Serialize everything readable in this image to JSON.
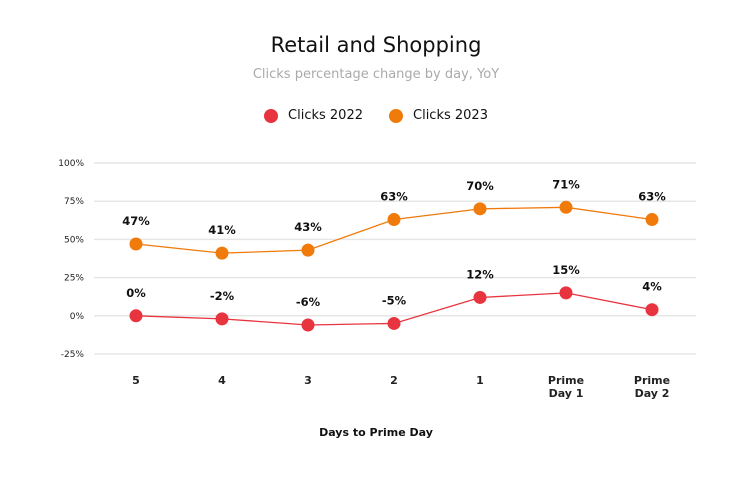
{
  "chart_data": {
    "type": "line",
    "title": "Retail and Shopping",
    "subtitle": "Clicks percentage change by day, YoY",
    "xlabel": "Days to Prime Day",
    "ylabel": "",
    "categories": [
      [
        "5"
      ],
      [
        "4"
      ],
      [
        "3"
      ],
      [
        "2"
      ],
      [
        "1"
      ],
      [
        "Prime",
        "Day 1"
      ],
      [
        "Prime",
        "Day 2"
      ]
    ],
    "yticks": [
      100,
      75,
      50,
      25,
      0,
      -25
    ],
    "ytick_labels": [
      "100%",
      "75%",
      "50%",
      "25%",
      "0%",
      "-25%"
    ],
    "ylim": [
      -25,
      100
    ],
    "grid": true,
    "legend_position": "top-center",
    "series": [
      {
        "name": "Clicks 2022",
        "color": "#E8343F",
        "values": [
          0,
          -2,
          -6,
          -5,
          12,
          15,
          4
        ],
        "labels": [
          "0%",
          "-2%",
          "-6%",
          "-5%",
          "12%",
          "15%",
          "4%"
        ]
      },
      {
        "name": "Clicks 2023",
        "color": "#F07A0A",
        "values": [
          47,
          41,
          43,
          63,
          70,
          71,
          63
        ],
        "labels": [
          "47%",
          "41%",
          "43%",
          "63%",
          "70%",
          "71%",
          "63%"
        ]
      }
    ]
  }
}
